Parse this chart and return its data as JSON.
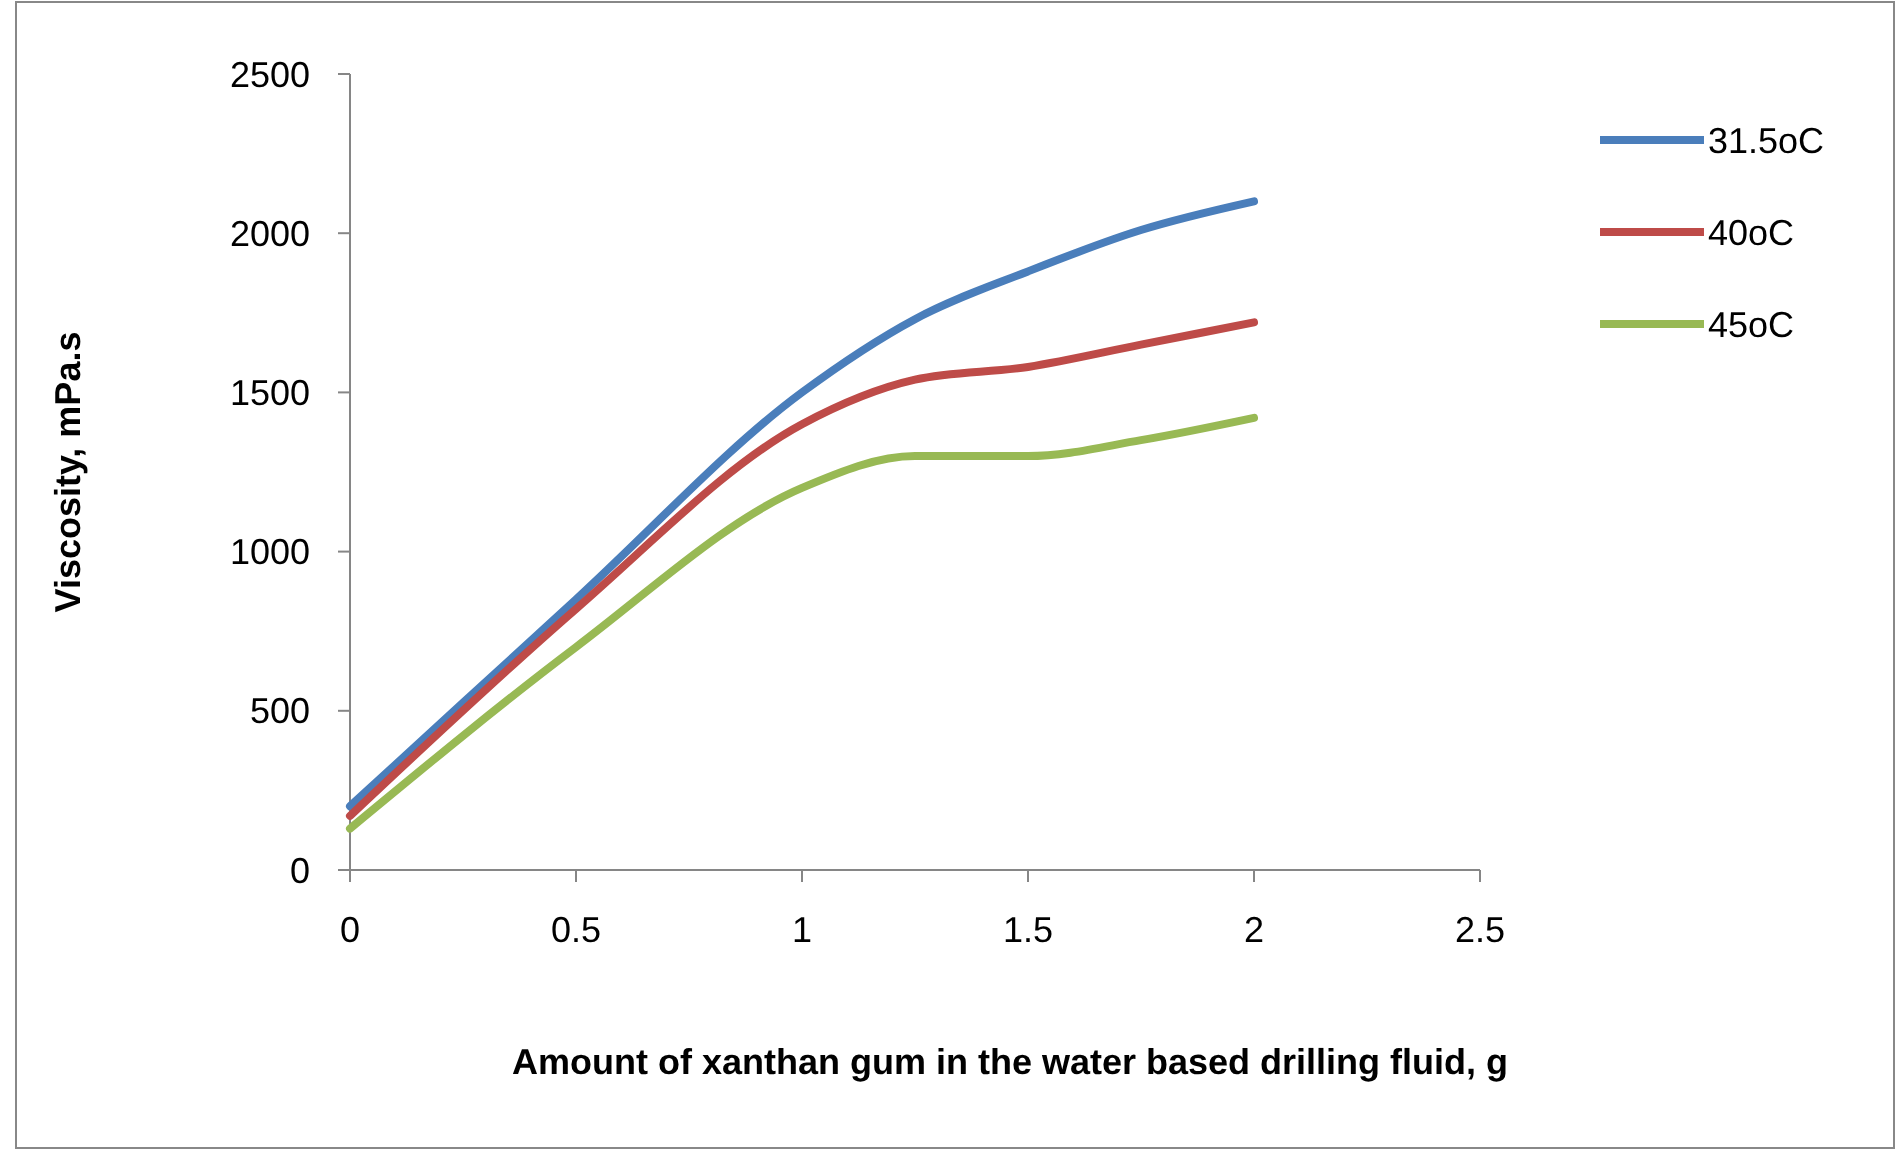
{
  "chart_data": {
    "type": "line",
    "xlabel": "Amount of xanthan gum in the water based drilling fluid, g",
    "ylabel": "Viscosity, mPa.s",
    "x": [
      0,
      0.5,
      1,
      1.25,
      1.5,
      1.75,
      2
    ],
    "xlim": [
      0,
      2.5
    ],
    "xticks": [
      0,
      0.5,
      1,
      1.5,
      2,
      2.5
    ],
    "ylim": [
      0,
      2500
    ],
    "yticks": [
      0,
      500,
      1000,
      1500,
      2000,
      2500
    ],
    "legend": "right",
    "marker": "none",
    "line_style": "solid",
    "grid": false,
    "series": [
      {
        "name": "31.5oC",
        "color": "#4a7ebb",
        "values": [
          200,
          850,
          1500,
          1730,
          1880,
          2010,
          2100
        ]
      },
      {
        "name": "40oC",
        "color": "#be4b48",
        "values": [
          170,
          820,
          1400,
          1540,
          1580,
          1650,
          1720
        ]
      },
      {
        "name": "45oC",
        "color": "#98b954",
        "values": [
          130,
          700,
          1200,
          1300,
          1300,
          1350,
          1420
        ]
      }
    ]
  }
}
